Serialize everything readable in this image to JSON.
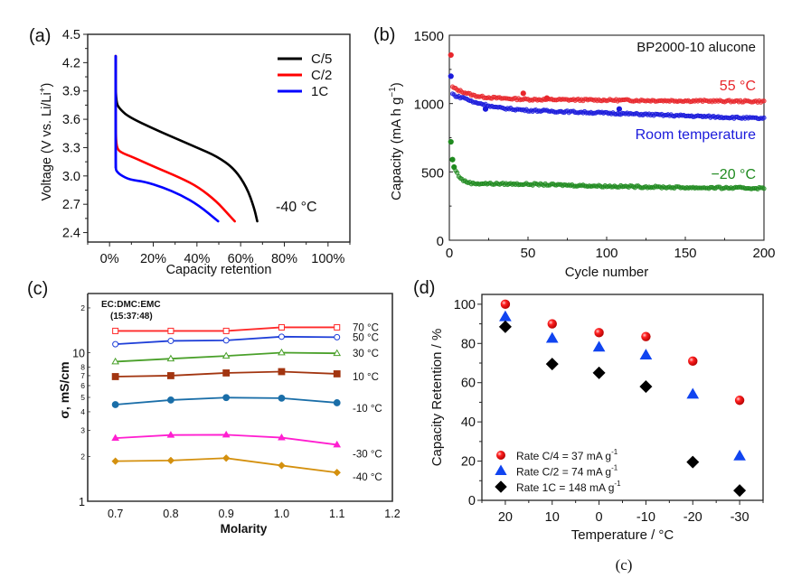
{
  "figure_caption": "(c)",
  "chart_data": [
    {
      "id": "a",
      "panel_label": "(a)",
      "type": "line",
      "title": "",
      "xlabel": "Capacity retention",
      "ylabel": "Voltage (V vs. Li/Li",
      "ylabel_sup": "+",
      "ylabel_tail": ")",
      "xlim": [
        -10,
        110
      ],
      "ylim": [
        2.3,
        4.5
      ],
      "x_ticks": [
        0,
        20,
        40,
        60,
        80,
        100
      ],
      "x_tick_labels": [
        "0%",
        "20%",
        "40%",
        "60%",
        "80%",
        "100%"
      ],
      "y_ticks": [
        2.4,
        2.7,
        3.0,
        3.3,
        3.6,
        3.9,
        4.2,
        4.5
      ],
      "y_tick_labels": [
        "2.4",
        "2.7",
        "3.0",
        "3.3",
        "3.6",
        "3.9",
        "4.2",
        "4.5"
      ],
      "grid": false,
      "legend_position": "top-right",
      "annotation": "-40 °C",
      "series": [
        {
          "name": "C/5",
          "color": "#000000",
          "x": [
            2.8,
            2.8,
            5,
            9.2,
            20.2,
            30,
            40,
            49,
            57,
            62.8,
            66.2,
            67.6
          ],
          "y": [
            4.27,
            3.78,
            3.7,
            3.62,
            3.5,
            3.4,
            3.3,
            3.21,
            3.08,
            2.88,
            2.66,
            2.52
          ]
        },
        {
          "name": "C/2",
          "color": "#ff0000",
          "x": [
            2.8,
            2.8,
            3.2,
            5,
            10.6,
            20.2,
            32.5,
            40.8,
            49,
            54.5,
            57.3
          ],
          "y": [
            4.27,
            3.48,
            3.3,
            3.25,
            3.2,
            3.1,
            2.98,
            2.88,
            2.73,
            2.59,
            2.52
          ]
        },
        {
          "name": "1C",
          "color": "#0000ff",
          "x": [
            2.8,
            2.8,
            3.2,
            5,
            9.2,
            16,
            24.3,
            32.5,
            40.8,
            49.7
          ],
          "y": [
            4.27,
            3.08,
            3.05,
            3.01,
            2.96,
            2.94,
            2.88,
            2.8,
            2.69,
            2.52
          ]
        }
      ]
    },
    {
      "id": "b",
      "panel_label": "(b)",
      "type": "scatter",
      "title": "BP2000-10 alucone",
      "xlabel": "Cycle number",
      "ylabel": "Capacity (mA h g",
      "ylabel_sup": "−1",
      "ylabel_tail": ")",
      "xlim": [
        0,
        200
      ],
      "ylim": [
        0,
        1500
      ],
      "x_ticks": [
        0,
        50,
        100,
        150,
        200
      ],
      "x_tick_labels": [
        "0",
        "50",
        "100",
        "150",
        "200"
      ],
      "y_ticks": [
        0,
        500,
        1000,
        1500
      ],
      "y_tick_labels": [
        "0",
        "500",
        "1000",
        "1500"
      ],
      "grid": false,
      "series": [
        {
          "name": "55 °C",
          "color": "#e8262b",
          "first_points": [
            [
              1,
              1355
            ]
          ],
          "trend": [
            [
              2,
              1120
            ],
            [
              5,
              1100
            ],
            [
              10,
              1080
            ],
            [
              15,
              1060
            ],
            [
              20,
              1050
            ],
            [
              30,
              1040
            ],
            [
              50,
              1030
            ],
            [
              100,
              1025
            ],
            [
              150,
              1020
            ],
            [
              200,
              1015
            ]
          ],
          "outliers": [
            [
              47,
              1075
            ],
            [
              62,
              1040
            ]
          ]
        },
        {
          "name": "Room temperature",
          "color": "#1a1adb",
          "first_points": [
            [
              1,
              1200
            ]
          ],
          "trend": [
            [
              2,
              1070
            ],
            [
              5,
              1050
            ],
            [
              10,
              1040
            ],
            [
              15,
              1010
            ],
            [
              20,
              1000
            ],
            [
              30,
              970
            ],
            [
              50,
              950
            ],
            [
              75,
              940
            ],
            [
              100,
              930
            ],
            [
              150,
              910
            ],
            [
              200,
              890
            ]
          ],
          "outliers": [
            [
              23,
              960
            ],
            [
              108,
              960
            ]
          ]
        },
        {
          "name": "−20 °C",
          "color": "#1f8a1f",
          "first_points": [
            [
              1,
              720
            ],
            [
              2,
              590
            ],
            [
              3,
              535
            ]
          ],
          "trend": [
            [
              4,
              510
            ],
            [
              6,
              470
            ],
            [
              8,
              445
            ],
            [
              10,
              430
            ],
            [
              15,
              415
            ],
            [
              50,
              410
            ],
            [
              100,
              395
            ],
            [
              150,
              385
            ],
            [
              200,
              380
            ]
          ],
          "outliers": []
        }
      ]
    },
    {
      "id": "c",
      "panel_label": "(c)",
      "type": "line",
      "title": "",
      "annotation_line1": "EC:DMC:EMC",
      "annotation_line2": "(15:37:48)",
      "xlabel": "Molarity",
      "ylabel": "σ, mS/cm",
      "yscale": "log",
      "xlim": [
        0.65,
        1.2
      ],
      "ylim": [
        1,
        25
      ],
      "x_ticks": [
        0.7,
        0.8,
        0.9,
        1.0,
        1.1,
        1.2
      ],
      "x_tick_labels": [
        "0.7",
        "0.8",
        "0.9",
        "1.0",
        "1.1",
        "1.2"
      ],
      "y_ticks": [
        1,
        2,
        3,
        4,
        5,
        6,
        7,
        8,
        10,
        20
      ],
      "y_tick_labels": [
        "1",
        "2",
        "3",
        "4",
        "5",
        "6",
        "7",
        "8",
        "10",
        "2"
      ],
      "grid": false,
      "x": [
        0.7,
        0.8,
        0.9,
        1.0,
        1.1
      ],
      "series": [
        {
          "name": "70 °C",
          "color": "#ff2a2a",
          "marker": "square-open",
          "values": [
            14.0,
            14.0,
            14.0,
            14.8,
            14.8
          ]
        },
        {
          "name": "50 °C",
          "color": "#1f3fd8",
          "marker": "circle-open",
          "values": [
            11.4,
            12.0,
            12.1,
            12.8,
            12.7
          ]
        },
        {
          "name": "30 °C",
          "color": "#4aa02a",
          "marker": "triangle-open",
          "values": [
            8.7,
            9.1,
            9.5,
            10.0,
            9.9
          ]
        },
        {
          "name": "10 °C",
          "color": "#a23510",
          "marker": "square",
          "values": [
            6.9,
            7.0,
            7.3,
            7.45,
            7.2
          ]
        },
        {
          "name": "-10 °C",
          "color": "#1a6ea8",
          "marker": "circle",
          "values": [
            4.47,
            4.8,
            4.98,
            4.94,
            4.6
          ]
        },
        {
          "name": "-30 °C",
          "color": "#ff1fd0",
          "marker": "triangle",
          "values": [
            2.66,
            2.79,
            2.8,
            2.68,
            2.4
          ]
        },
        {
          "name": "-40 °C",
          "color": "#d4900e",
          "marker": "diamond",
          "values": [
            1.86,
            1.88,
            1.95,
            1.74,
            1.56
          ]
        }
      ]
    },
    {
      "id": "d",
      "panel_label": "(d)",
      "type": "scatter",
      "title": "",
      "xlabel": "Temperature / °C",
      "ylabel": "Capacity Retention / %",
      "xlim": [
        25,
        -35
      ],
      "ylim": [
        0,
        105
      ],
      "x_ticks": [
        20,
        10,
        0,
        -10,
        -20,
        -30
      ],
      "x_tick_labels": [
        "20",
        "10",
        "0",
        "-10",
        "-20",
        "-30"
      ],
      "y_ticks": [
        0,
        20,
        40,
        60,
        80,
        100
      ],
      "y_tick_labels": [
        "0",
        "20",
        "40",
        "60",
        "80",
        "100"
      ],
      "grid": false,
      "legend_position": "bottom-left",
      "x": [
        20,
        10,
        0,
        -10,
        -20,
        -30
      ],
      "series": [
        {
          "name": "Rate C/4 = 37 mA g",
          "sup": "-1",
          "color": "#ee1111",
          "marker": "sphere",
          "values": [
            100,
            90,
            85.5,
            83.5,
            71,
            51
          ]
        },
        {
          "name": "Rate C/2 = 74 mA g",
          "sup": "-1",
          "color": "#1044f0",
          "marker": "triangle",
          "values": [
            93.5,
            82.5,
            78,
            74,
            54,
            22.5
          ]
        },
        {
          "name": "Rate 1C  = 148 mA g",
          "sup": "-1",
          "color": "#000000",
          "marker": "diamond",
          "values": [
            88.5,
            69.5,
            65,
            58,
            19.5,
            5
          ]
        }
      ]
    }
  ]
}
